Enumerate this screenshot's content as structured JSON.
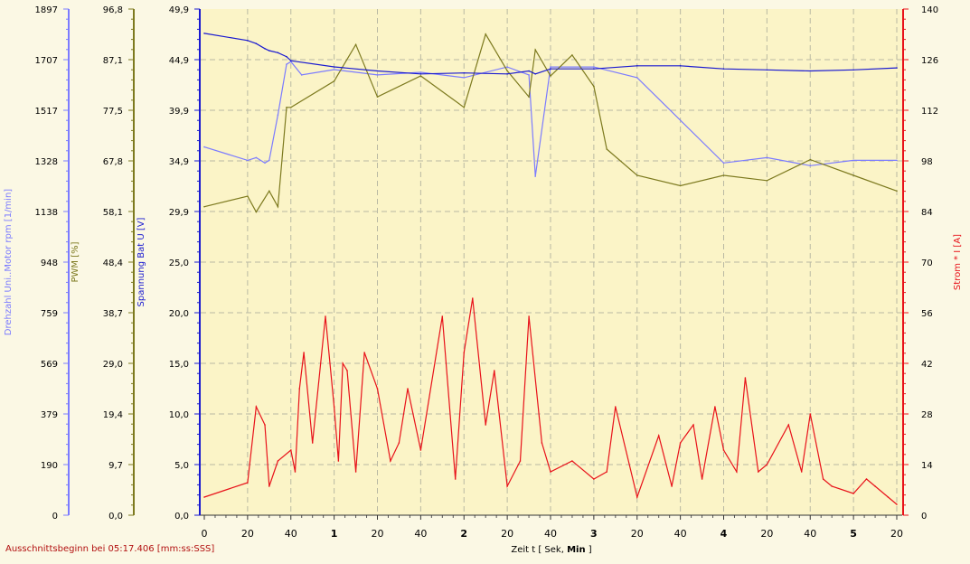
{
  "chart_data": {
    "type": "line",
    "footer_note": "Ausschnittsbeginn bei 05:17.406 [mm:ss:SSS]",
    "x_axis": {
      "label_prefix": "Zeit   t   [ Sek, ",
      "label_bold": "Min",
      "label_suffix": " ]",
      "range_seconds": [
        0,
        320
      ],
      "tick_labels": [
        "0",
        "20",
        "40",
        "1",
        "20",
        "40",
        "2",
        "20",
        "40",
        "3",
        "20",
        "40",
        "4",
        "20",
        "40",
        "5",
        "20"
      ],
      "minute_ticks": [
        "1",
        "2",
        "3",
        "4",
        "5"
      ]
    },
    "y_axes": [
      {
        "id": "rpm",
        "label": "Drehzahl Uni..Motor   rpm   [1/min]",
        "color": "#7b7bff",
        "range": [
          0,
          1897
        ],
        "ticks": [
          "0",
          "190",
          "379",
          "569",
          "759",
          "948",
          "1138",
          "1328",
          "1517",
          "1707",
          "1897"
        ]
      },
      {
        "id": "pwm",
        "label": "PWM   [%]",
        "color": "#7d7a1f",
        "range": [
          0,
          96.8
        ],
        "ticks": [
          "0,0",
          "9,7",
          "19,4",
          "29,0",
          "38,7",
          "48,4",
          "58,1",
          "67,8",
          "77,5",
          "87,1",
          "96,8"
        ]
      },
      {
        "id": "volt",
        "label": "Spannung Bat   U   [V]",
        "color": "#1a1ad0",
        "range": [
          0,
          49.9
        ],
        "ticks": [
          "0,0",
          "5,0",
          "10,0",
          "15,0",
          "20,0",
          "25,0",
          "29,9",
          "34,9",
          "39,9",
          "44,9",
          "49,9"
        ]
      },
      {
        "id": "current",
        "label": "Strom *   I   [A]",
        "color": "#e8121a",
        "range": [
          0,
          140
        ],
        "ticks": [
          "0",
          "14",
          "28",
          "42",
          "56",
          "70",
          "84",
          "98",
          "112",
          "126",
          "140"
        ]
      }
    ],
    "series": [
      {
        "name": "Drehzahl Uni..Motor",
        "axis": "rpm",
        "color": "#7b7bff",
        "x": [
          0,
          20,
          24,
          28,
          30,
          34,
          38,
          40,
          45,
          60,
          80,
          100,
          120,
          140,
          150,
          153,
          160,
          180,
          200,
          240,
          260,
          280,
          300,
          320
        ],
        "y": [
          1380,
          1330,
          1340,
          1320,
          1330,
          1500,
          1690,
          1700,
          1650,
          1670,
          1650,
          1660,
          1640,
          1680,
          1650,
          1270,
          1680,
          1680,
          1640,
          1320,
          1340,
          1310,
          1330,
          1330
        ]
      },
      {
        "name": "PWM",
        "axis": "pwm",
        "color": "#7d7a1f",
        "x": [
          0,
          20,
          24,
          30,
          34,
          38,
          40,
          60,
          70,
          80,
          100,
          120,
          130,
          140,
          150,
          153,
          160,
          170,
          180,
          186,
          200,
          220,
          240,
          260,
          280,
          300,
          320
        ],
        "y": [
          59,
          61,
          58,
          62,
          59,
          78,
          78,
          83,
          90,
          80,
          84,
          78,
          92,
          85,
          80,
          89,
          84,
          88,
          82,
          70,
          65,
          63,
          65,
          64,
          68,
          65,
          62
        ]
      },
      {
        "name": "Spannung Bat",
        "axis": "volt",
        "color": "#1a1ad0",
        "x": [
          0,
          20,
          24,
          28,
          30,
          34,
          38,
          40,
          60,
          80,
          100,
          120,
          140,
          150,
          153,
          160,
          180,
          200,
          220,
          240,
          260,
          280,
          300,
          320
        ],
        "y": [
          47.5,
          46.8,
          46.5,
          46.0,
          45.8,
          45.6,
          45.2,
          44.8,
          44.2,
          43.8,
          43.5,
          43.6,
          43.5,
          43.8,
          43.5,
          44.0,
          44.0,
          44.3,
          44.3,
          44.0,
          43.9,
          43.8,
          43.9,
          44.1
        ]
      },
      {
        "name": "Strom",
        "axis": "current",
        "color": "#e8121a",
        "x": [
          0,
          20,
          24,
          28,
          30,
          34,
          40,
          42,
          44,
          46,
          50,
          56,
          60,
          62,
          64,
          66,
          70,
          74,
          80,
          86,
          90,
          94,
          100,
          110,
          116,
          120,
          124,
          130,
          134,
          140,
          146,
          150,
          156,
          160,
          170,
          180,
          186,
          190,
          200,
          210,
          216,
          220,
          226,
          230,
          236,
          240,
          246,
          250,
          256,
          260,
          270,
          276,
          280,
          286,
          290,
          300,
          306,
          310,
          316,
          320
        ],
        "y": [
          5,
          9,
          30,
          25,
          8,
          15,
          18,
          12,
          35,
          45,
          20,
          55,
          30,
          15,
          42,
          40,
          12,
          45,
          35,
          15,
          20,
          35,
          18,
          55,
          10,
          45,
          60,
          25,
          40,
          8,
          15,
          55,
          20,
          12,
          15,
          10,
          12,
          30,
          5,
          22,
          8,
          20,
          25,
          10,
          30,
          18,
          12,
          38,
          12,
          14,
          25,
          12,
          28,
          10,
          8,
          6,
          10,
          8,
          5,
          3
        ]
      }
    ]
  }
}
